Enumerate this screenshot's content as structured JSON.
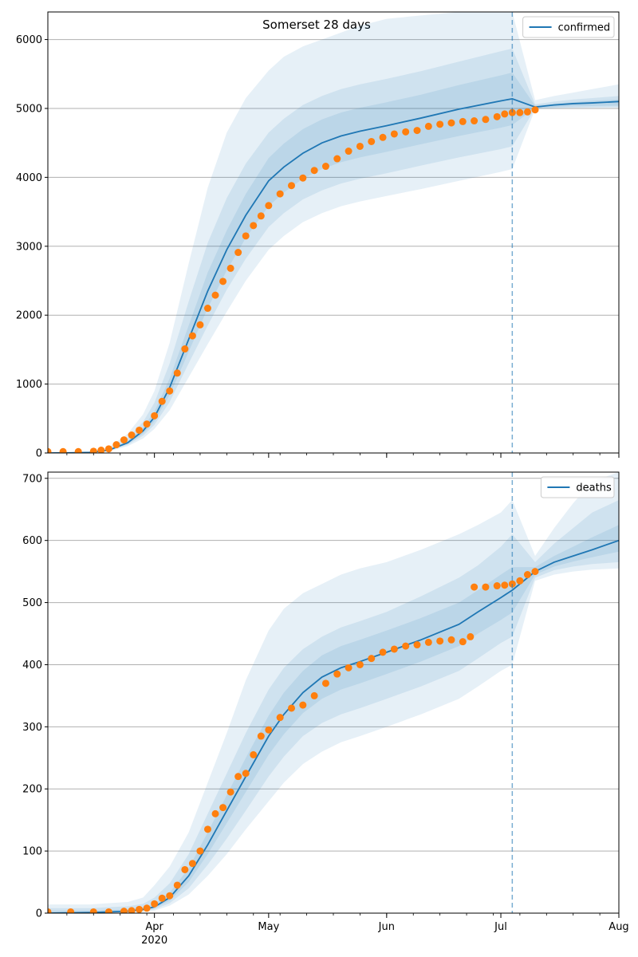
{
  "title": "Somerset 28 days",
  "colors": {
    "model": "#1f77b4",
    "observed": "#ff7f0e",
    "grid": "#b0b0b0",
    "band": "#1f77b4"
  },
  "x_axis": {
    "ticks": [
      {
        "date": "2020-04-01",
        "label": "Apr",
        "sublabel": "2020"
      },
      {
        "date": "2020-05-01",
        "label": "May",
        "sublabel": ""
      },
      {
        "date": "2020-06-01",
        "label": "Jun",
        "sublabel": ""
      },
      {
        "date": "2020-07-01",
        "label": "Jul",
        "sublabel": ""
      },
      {
        "date": "2020-08-01",
        "label": "Aug",
        "sublabel": ""
      }
    ]
  },
  "chart_data": [
    {
      "type": "line",
      "title": "Somerset 28 days",
      "legend": "top-right",
      "grid": true,
      "xlim": [
        "2020-03-04",
        "2020-08-01"
      ],
      "ylim": [
        0,
        6400
      ],
      "yticks": [
        0,
        1000,
        2000,
        3000,
        4000,
        5000,
        6000
      ],
      "forecast_start": "2020-07-04",
      "series": [
        {
          "name": "confirmed",
          "kind": "model",
          "x": [
            "2020-03-04",
            "2020-03-10",
            "2020-03-15",
            "2020-03-20",
            "2020-03-25",
            "2020-03-29",
            "2020-04-01",
            "2020-04-05",
            "2020-04-10",
            "2020-04-15",
            "2020-04-20",
            "2020-04-25",
            "2020-05-01",
            "2020-05-05",
            "2020-05-10",
            "2020-05-15",
            "2020-05-20",
            "2020-05-25",
            "2020-06-01",
            "2020-06-10",
            "2020-06-20",
            "2020-07-01",
            "2020-07-04",
            "2020-07-10",
            "2020-07-15",
            "2020-07-20",
            "2020-07-25",
            "2020-08-01"
          ],
          "y": [
            0,
            2,
            8,
            40,
            150,
            320,
            520,
            950,
            1650,
            2350,
            2950,
            3450,
            3950,
            4150,
            4350,
            4500,
            4600,
            4670,
            4750,
            4860,
            4990,
            5110,
            5140,
            5020,
            5050,
            5070,
            5080,
            5100
          ],
          "bands": [
            {
              "lower": [
                0,
                1,
                5,
                25,
                100,
                210,
                350,
                620,
                1100,
                1580,
                2050,
                2500,
                2950,
                3150,
                3350,
                3480,
                3580,
                3650,
                3730,
                3830,
                3950,
                4080,
                4120,
                4990,
                5000,
                5005,
                5008,
                5010
              ],
              "upper": [
                5,
                8,
                20,
                80,
                280,
                560,
                900,
                1600,
                2750,
                3850,
                4650,
                5150,
                5550,
                5750,
                5900,
                6000,
                6100,
                6200,
                6300,
                6350,
                6400,
                6400,
                6400,
                5120,
                5180,
                5230,
                5280,
                5350
              ]
            },
            {
              "lower": [
                0,
                1,
                6,
                30,
                120,
                250,
                410,
                740,
                1300,
                1850,
                2370,
                2820,
                3280,
                3480,
                3680,
                3810,
                3910,
                3980,
                4060,
                4170,
                4290,
                4410,
                4450,
                5000,
                5008,
                5012,
                5015,
                5020
              ],
              "upper": [
                3,
                5,
                12,
                60,
                220,
                450,
                730,
                1300,
                2200,
                3050,
                3700,
                4200,
                4650,
                4850,
                5050,
                5180,
                5280,
                5350,
                5430,
                5540,
                5680,
                5830,
                5870,
                5060,
                5100,
                5130,
                5150,
                5180
              ]
            },
            {
              "lower": [
                0,
                1,
                7,
                34,
                132,
                280,
                460,
                840,
                1470,
                2100,
                2650,
                3120,
                3580,
                3780,
                3980,
                4120,
                4220,
                4290,
                4370,
                4480,
                4600,
                4720,
                4760,
                5008,
                5020,
                5030,
                5035,
                5040
              ],
              "upper": [
                2,
                3,
                10,
                48,
                175,
                370,
                600,
                1080,
                1850,
                2620,
                3230,
                3760,
                4280,
                4490,
                4700,
                4840,
                4940,
                5010,
                5090,
                5200,
                5340,
                5480,
                5520,
                5040,
                5070,
                5090,
                5110,
                5130
              ]
            }
          ]
        },
        {
          "name": "",
          "kind": "observed",
          "x": [
            "2020-03-04",
            "2020-03-08",
            "2020-03-12",
            "2020-03-16",
            "2020-03-18",
            "2020-03-20",
            "2020-03-22",
            "2020-03-24",
            "2020-03-26",
            "2020-03-28",
            "2020-03-30",
            "2020-04-01",
            "2020-04-03",
            "2020-04-05",
            "2020-04-07",
            "2020-04-09",
            "2020-04-11",
            "2020-04-13",
            "2020-04-15",
            "2020-04-17",
            "2020-04-19",
            "2020-04-21",
            "2020-04-23",
            "2020-04-25",
            "2020-04-27",
            "2020-04-29",
            "2020-05-01",
            "2020-05-04",
            "2020-05-07",
            "2020-05-10",
            "2020-05-13",
            "2020-05-16",
            "2020-05-19",
            "2020-05-22",
            "2020-05-25",
            "2020-05-28",
            "2020-05-31",
            "2020-06-03",
            "2020-06-06",
            "2020-06-09",
            "2020-06-12",
            "2020-06-15",
            "2020-06-18",
            "2020-06-21",
            "2020-06-24",
            "2020-06-27",
            "2020-06-30",
            "2020-07-02",
            "2020-07-04",
            "2020-07-06",
            "2020-07-08",
            "2020-07-10"
          ],
          "y": [
            20,
            20,
            20,
            25,
            40,
            60,
            120,
            190,
            260,
            330,
            420,
            540,
            750,
            900,
            1160,
            1510,
            1700,
            1860,
            2100,
            2290,
            2490,
            2680,
            2910,
            3150,
            3300,
            3440,
            3590,
            3760,
            3880,
            3990,
            4100,
            4160,
            4270,
            4380,
            4450,
            4520,
            4580,
            4630,
            4660,
            4680,
            4740,
            4770,
            4790,
            4810,
            4820,
            4840,
            4880,
            4920,
            4940,
            4940,
            4950,
            4980
          ]
        }
      ]
    },
    {
      "type": "line",
      "legend": "top-right",
      "grid": true,
      "xlim": [
        "2020-03-04",
        "2020-08-01"
      ],
      "ylim": [
        0,
        710
      ],
      "yticks": [
        0,
        100,
        200,
        300,
        400,
        500,
        600,
        700
      ],
      "forecast_start": "2020-07-04",
      "series": [
        {
          "name": "deaths",
          "kind": "model",
          "x": [
            "2020-03-04",
            "2020-03-15",
            "2020-03-25",
            "2020-03-29",
            "2020-04-01",
            "2020-04-05",
            "2020-04-10",
            "2020-04-15",
            "2020-04-20",
            "2020-04-25",
            "2020-05-01",
            "2020-05-05",
            "2020-05-10",
            "2020-05-15",
            "2020-05-20",
            "2020-05-25",
            "2020-06-01",
            "2020-06-10",
            "2020-06-20",
            "2020-06-25",
            "2020-07-01",
            "2020-07-04",
            "2020-07-10",
            "2020-07-15",
            "2020-07-20",
            "2020-07-25",
            "2020-08-01"
          ],
          "y": [
            0,
            1,
            3,
            6,
            10,
            25,
            60,
            110,
            165,
            220,
            285,
            320,
            355,
            380,
            395,
            405,
            420,
            440,
            465,
            485,
            508,
            520,
            550,
            565,
            575,
            585,
            600
          ],
          "bands": [
            {
              "lower": [
                0,
                0,
                1,
                2,
                4,
                12,
                30,
                60,
                95,
                135,
                180,
                210,
                240,
                260,
                275,
                285,
                300,
                320,
                345,
                365,
                390,
                400,
                535,
                545,
                550,
                553,
                555
              ],
              "upper": [
                14,
                14,
                18,
                25,
                45,
                75,
                130,
                210,
                290,
                375,
                455,
                490,
                515,
                530,
                545,
                555,
                565,
                585,
                610,
                625,
                645,
                665,
                575,
                620,
                660,
                695,
                710
              ]
            },
            {
              "lower": [
                0,
                0,
                2,
                3,
                6,
                16,
                40,
                78,
                120,
                165,
                220,
                252,
                285,
                306,
                320,
                330,
                345,
                365,
                390,
                410,
                435,
                445,
                540,
                552,
                558,
                562,
                565
              ],
              "upper": [
                8,
                8,
                11,
                15,
                25,
                48,
                95,
                160,
                225,
                290,
                360,
                395,
                425,
                445,
                460,
                470,
                485,
                510,
                540,
                560,
                590,
                610,
                565,
                595,
                620,
                645,
                665
              ]
            },
            {
              "lower": [
                0,
                1,
                2,
                4,
                8,
                20,
                50,
                95,
                145,
                195,
                255,
                288,
                322,
                345,
                360,
                370,
                385,
                405,
                430,
                450,
                472,
                484,
                545,
                558,
                566,
                573,
                582
              ],
              "upper": [
                4,
                4,
                6,
                9,
                15,
                33,
                72,
                130,
                190,
                250,
                318,
                355,
                390,
                415,
                430,
                440,
                455,
                475,
                500,
                520,
                545,
                557,
                557,
                575,
                590,
                605,
                625
              ]
            }
          ]
        },
        {
          "name": "",
          "kind": "observed",
          "x": [
            "2020-03-04",
            "2020-03-10",
            "2020-03-16",
            "2020-03-20",
            "2020-03-24",
            "2020-03-26",
            "2020-03-28",
            "2020-03-30",
            "2020-04-01",
            "2020-04-03",
            "2020-04-05",
            "2020-04-07",
            "2020-04-09",
            "2020-04-11",
            "2020-04-13",
            "2020-04-15",
            "2020-04-17",
            "2020-04-19",
            "2020-04-21",
            "2020-04-23",
            "2020-04-25",
            "2020-04-27",
            "2020-04-29",
            "2020-05-01",
            "2020-05-04",
            "2020-05-07",
            "2020-05-10",
            "2020-05-13",
            "2020-05-16",
            "2020-05-19",
            "2020-05-22",
            "2020-05-25",
            "2020-05-28",
            "2020-05-31",
            "2020-06-03",
            "2020-06-06",
            "2020-06-09",
            "2020-06-12",
            "2020-06-15",
            "2020-06-18",
            "2020-06-21",
            "2020-06-23",
            "2020-06-24",
            "2020-06-27",
            "2020-06-30",
            "2020-07-02",
            "2020-07-04",
            "2020-07-06",
            "2020-07-08",
            "2020-07-10"
          ],
          "y": [
            2,
            2,
            2,
            2,
            3,
            4,
            6,
            8,
            15,
            24,
            28,
            45,
            70,
            80,
            100,
            135,
            160,
            170,
            195,
            220,
            225,
            255,
            285,
            295,
            315,
            330,
            335,
            350,
            370,
            385,
            395,
            400,
            410,
            420,
            425,
            430,
            432,
            436,
            438,
            440,
            437,
            445,
            525,
            525,
            527,
            528,
            530,
            535,
            545,
            550
          ]
        }
      ]
    }
  ]
}
